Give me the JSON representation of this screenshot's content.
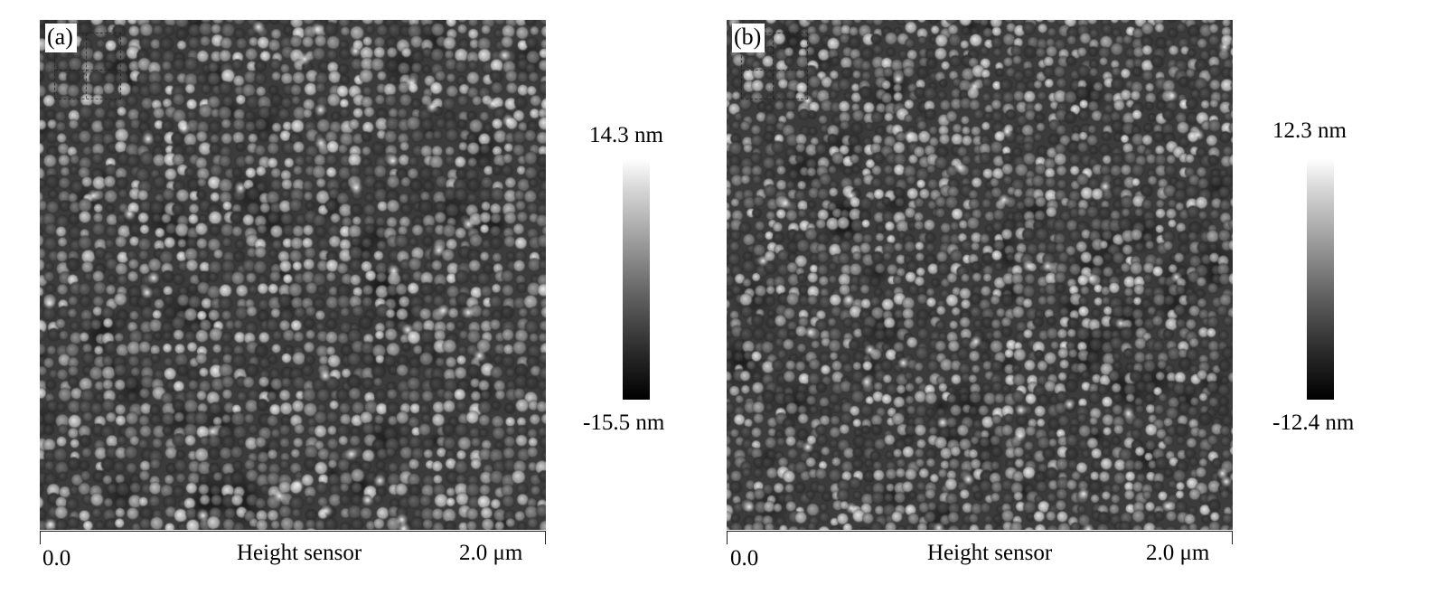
{
  "panels": [
    {
      "label": "(a)",
      "colorbar": {
        "max": "14.3 nm",
        "min": "-15.5 nm"
      },
      "scale": {
        "start": "0.0",
        "channel": "Height sensor",
        "end": "2.0 μm"
      }
    },
    {
      "label": "(b)",
      "colorbar": {
        "max": "12.3 nm",
        "min": "-12.4 nm"
      },
      "scale": {
        "start": "0.0",
        "channel": "Height sensor",
        "end": "2.0 μm"
      }
    }
  ]
}
